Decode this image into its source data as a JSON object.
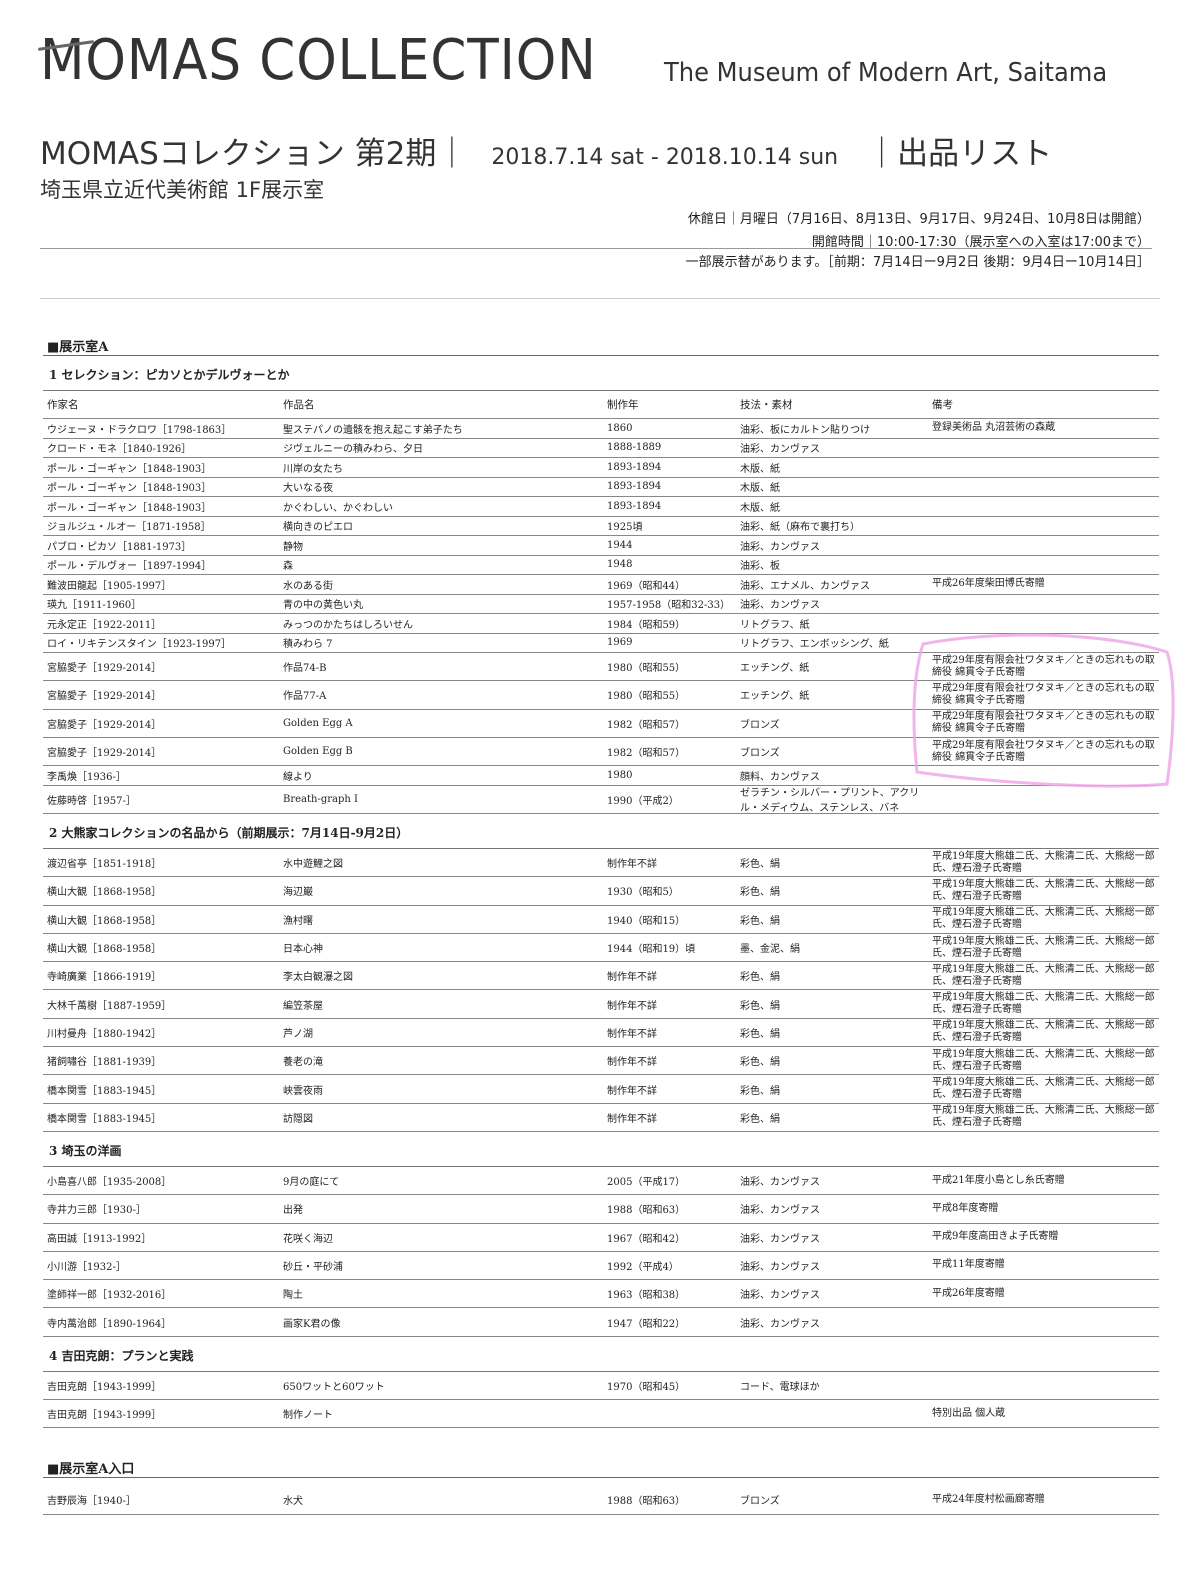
{
  "header": {
    "title": "MOMAS COLLECTION",
    "museum": "The Museum of Modern Art, Saitama",
    "subtitle": "MOMASコレクション 第2期｜",
    "dates": "2018.7.14 sat - 2018.10.14 sun",
    "list_label": "｜出品リスト",
    "venue": "埼玉県立近代美術館  1F展示室",
    "closed": "休館日｜月曜日（7月16日、8月13日、9月17日、9月24日、10月8日は開館）",
    "hours": "開館時間｜10:00-17:30（展示室への入室は17:00まで）",
    "rotation": "一部展示替があります。［前期：7月14日ー9月2日  後期：9月4日ー10月14日］"
  },
  "columns": [
    "作家名",
    "作品名",
    "制作年",
    "技法・素材",
    "備考"
  ],
  "rooms": [
    {
      "title": "■展示室A",
      "sections": [
        {
          "title": "1  セレクション：ピカソとかデルヴォーとか",
          "header": true,
          "rows": [
            [
              "ウジェーヌ・ドラクロワ［1798-1863］",
              "聖ステパノの遺骸を抱え起こす弟子たち",
              "1860",
              "油彩、板にカルトン貼りつけ",
              "登録美術品  丸沼芸術の森蔵"
            ],
            [
              "クロード・モネ［1840-1926］",
              "ジヴェルニーの積みわら、夕日",
              "1888-1889",
              "油彩、カンヴァス",
              ""
            ],
            [
              "ポール・ゴーギャン［1848-1903］",
              "川岸の女たち",
              "1893-1894",
              "木版、紙",
              ""
            ],
            [
              "ポール・ゴーギャン［1848-1903］",
              "大いなる夜",
              "1893-1894",
              "木版、紙",
              ""
            ],
            [
              "ポール・ゴーギャン［1848-1903］",
              "かぐわしい、かぐわしい",
              "1893-1894",
              "木版、紙",
              ""
            ],
            [
              "ジョルジュ・ルオー［1871-1958］",
              "横向きのピエロ",
              "1925頃",
              "油彩、紙（麻布で裏打ち）",
              ""
            ],
            [
              "パブロ・ピカソ［1881-1973］",
              "静物",
              "1944",
              "油彩、カンヴァス",
              ""
            ],
            [
              "ポール・デルヴォー［1897-1994］",
              "森",
              "1948",
              "油彩、板",
              ""
            ],
            [
              "難波田龍起［1905-1997］",
              "水のある街",
              "1969（昭和44）",
              "油彩、エナメル、カンヴァス",
              "平成26年度柴田博氏寄贈"
            ],
            [
              "瑛九［1911-1960］",
              "青の中の黄色い丸",
              "1957-1958（昭和32-33）",
              "油彩、カンヴァス",
              ""
            ],
            [
              "元永定正［1922-2011］",
              "みっつのかたちはしろいせん",
              "1984（昭和59）",
              "リトグラフ、紙",
              ""
            ],
            [
              "ロイ・リキテンスタイン［1923-1997］",
              "積みわら 7",
              "1969",
              "リトグラフ、エンボッシング、紙",
              ""
            ],
            [
              "宮脇愛子［1929-2014］",
              "作品74-B",
              "1980（昭和55）",
              "エッチング、紙",
              "平成29年度有限会社ワタヌキ／ときの忘れもの取締役  綿貫令子氏寄贈"
            ],
            [
              "宮脇愛子［1929-2014］",
              "作品77-A",
              "1980（昭和55）",
              "エッチング、紙",
              "平成29年度有限会社ワタヌキ／ときの忘れもの取締役  綿貫令子氏寄贈"
            ],
            [
              "宮脇愛子［1929-2014］",
              "Golden Egg A",
              "1982（昭和57）",
              "ブロンズ",
              "平成29年度有限会社ワタヌキ／ときの忘れもの取締役  綿貫令子氏寄贈"
            ],
            [
              "宮脇愛子［1929-2014］",
              "Golden Egg B",
              "1982（昭和57）",
              "ブロンズ",
              "平成29年度有限会社ワタヌキ／ときの忘れもの取締役  綿貫令子氏寄贈"
            ],
            [
              "李禹煥［1936-］",
              "線より",
              "1980",
              "顔料、カンヴァス",
              ""
            ],
            [
              "佐藤時啓［1957-］",
              "Breath-graph I",
              "1990（平成2）",
              "ゼラチン・シルバー・プリント、アクリル・メディウム、ステンレス、バネ",
              ""
            ]
          ]
        },
        {
          "title": "2  大熊家コレクションの名品から（前期展示：7月14日-9月2日）",
          "rows": [
            [
              "渡辺省亭［1851-1918］",
              "水中遊鯉之図",
              "制作年不詳",
              "彩色、絹",
              "平成19年度大熊雄二氏、大熊清二氏、大熊総一郎氏、煙石澄子氏寄贈"
            ],
            [
              "横山大観［1868-1958］",
              "海辺巌",
              "1930（昭和5）",
              "彩色、絹",
              "平成19年度大熊雄二氏、大熊清二氏、大熊総一郎氏、煙石澄子氏寄贈"
            ],
            [
              "横山大観［1868-1958］",
              "漁村曙",
              "1940（昭和15）",
              "彩色、絹",
              "平成19年度大熊雄二氏、大熊清二氏、大熊総一郎氏、煙石澄子氏寄贈"
            ],
            [
              "横山大観［1868-1958］",
              "日本心神",
              "1944（昭和19）頃",
              "墨、金泥、絹",
              "平成19年度大熊雄二氏、大熊清二氏、大熊総一郎氏、煙石澄子氏寄贈"
            ],
            [
              "寺崎廣業［1866-1919］",
              "李太白観瀑之図",
              "制作年不詳",
              "彩色、絹",
              "平成19年度大熊雄二氏、大熊清二氏、大熊総一郎氏、煙石澄子氏寄贈"
            ],
            [
              "大林千萬樹［1887-1959］",
              "編笠茶屋",
              "制作年不詳",
              "彩色、絹",
              "平成19年度大熊雄二氏、大熊清二氏、大熊総一郎氏、煙石澄子氏寄贈"
            ],
            [
              "川村曼舟［1880-1942］",
              "芦ノ湖",
              "制作年不詳",
              "彩色、絹",
              "平成19年度大熊雄二氏、大熊清二氏、大熊総一郎氏、煙石澄子氏寄贈"
            ],
            [
              "猪飼嘯谷［1881-1939］",
              "養老の滝",
              "制作年不詳",
              "彩色、絹",
              "平成19年度大熊雄二氏、大熊清二氏、大熊総一郎氏、煙石澄子氏寄贈"
            ],
            [
              "橋本関雪［1883-1945］",
              "峡雲夜雨",
              "制作年不詳",
              "彩色、絹",
              "平成19年度大熊雄二氏、大熊清二氏、大熊総一郎氏、煙石澄子氏寄贈"
            ],
            [
              "橋本関雪［1883-1945］",
              "訪隠図",
              "制作年不詳",
              "彩色、絹",
              "平成19年度大熊雄二氏、大熊清二氏、大熊総一郎氏、煙石澄子氏寄贈"
            ]
          ]
        },
        {
          "title": "3  埼玉の洋画",
          "rows": [
            [
              "小島喜八郎［1935-2008］",
              "9月の庭にて",
              "2005（平成17）",
              "油彩、カンヴァス",
              "平成21年度小島とし糸氏寄贈"
            ],
            [
              "寺井力三郎［1930-］",
              "出発",
              "1988（昭和63）",
              "油彩、カンヴァス",
              "平成8年度寄贈"
            ],
            [
              "高田誠［1913-1992］",
              "花咲く海辺",
              "1967（昭和42）",
              "油彩、カンヴァス",
              "平成9年度高田きよ子氏寄贈"
            ],
            [
              "小川游［1932-］",
              "砂丘・平砂浦",
              "1992（平成4）",
              "油彩、カンヴァス",
              "平成11年度寄贈"
            ],
            [
              "塗師祥一郎［1932-2016］",
              "陶土",
              "1963（昭和38）",
              "油彩、カンヴァス",
              "平成26年度寄贈"
            ],
            [
              "寺内萬治郎［1890-1964］",
              "画家K君の像",
              "1947（昭和22）",
              "油彩、カンヴァス",
              ""
            ]
          ]
        },
        {
          "title": "4  吉田克朗：プランと実践",
          "rows": [
            [
              "吉田克朗［1943-1999］",
              "650ワットと60ワット",
              "1970（昭和45）",
              "コード、電球ほか",
              ""
            ],
            [
              "吉田克朗［1943-1999］",
              "制作ノート",
              "",
              "",
              "特別出品  個人蔵"
            ]
          ]
        }
      ]
    },
    {
      "title": "■展示室A入口",
      "sections": [
        {
          "title": "",
          "rows": [
            [
              "吉野辰海［1940-］",
              "水犬",
              "1988（昭和63）",
              "ブロンズ",
              "平成24年度村松画廊寄贈"
            ]
          ]
        }
      ]
    }
  ],
  "annotation": {
    "color": "#f0a8e8"
  }
}
